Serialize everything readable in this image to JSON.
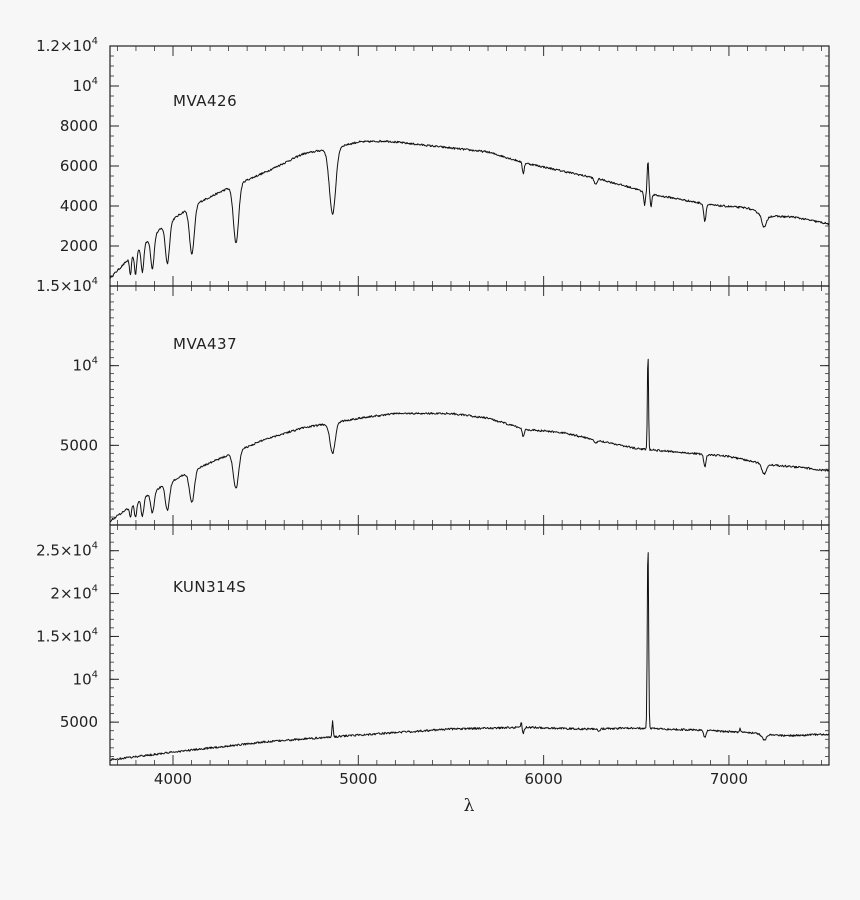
{
  "chart_data": {
    "type": "line",
    "xlabel": "λ",
    "xlim": [
      3660,
      7540
    ],
    "xticks": [
      "4000",
      "5000",
      "6000",
      "7000"
    ],
    "xtick_values": [
      4000,
      5000,
      6000,
      7000
    ],
    "grid": false,
    "panels": [
      {
        "label": "MVA426",
        "ylim": [
          0,
          12000
        ],
        "ytick_values": [
          2000,
          4000,
          6000,
          8000,
          10000,
          12000
        ],
        "ytick_labels": [
          {
            "base": "2000",
            "exp": ""
          },
          {
            "base": "4000",
            "exp": ""
          },
          {
            "base": "6000",
            "exp": ""
          },
          {
            "base": "8000",
            "exp": ""
          },
          {
            "base": "10",
            "exp": "4"
          },
          {
            "base": "1.2×10",
            "exp": "4"
          }
        ],
        "continuum": [
          [
            3660,
            400
          ],
          [
            3800,
            1700
          ],
          [
            3950,
            3000
          ],
          [
            4100,
            4000
          ],
          [
            4300,
            4900
          ],
          [
            4500,
            5700
          ],
          [
            4700,
            6600
          ],
          [
            4860,
            6900
          ],
          [
            5000,
            7200
          ],
          [
            5150,
            7250
          ],
          [
            5400,
            7000
          ],
          [
            5700,
            6700
          ],
          [
            5900,
            6150
          ],
          [
            6100,
            5750
          ],
          [
            6300,
            5350
          ],
          [
            6500,
            4850
          ],
          [
            6560,
            4600
          ],
          [
            6700,
            4400
          ],
          [
            6900,
            4050
          ],
          [
            7100,
            3900
          ],
          [
            7200,
            3500
          ],
          [
            7350,
            3450
          ],
          [
            7540,
            3100
          ]
        ],
        "features": [
          {
            "wl": 3770,
            "depth": -900,
            "width": 5
          },
          {
            "wl": 3798,
            "depth": -1100,
            "width": 6
          },
          {
            "wl": 3835,
            "depth": -1300,
            "width": 7
          },
          {
            "wl": 3889,
            "depth": -1600,
            "width": 9
          },
          {
            "wl": 3970,
            "depth": -2000,
            "width": 11
          },
          {
            "wl": 4102,
            "depth": -2400,
            "width": 13
          },
          {
            "wl": 4340,
            "depth": -2900,
            "width": 14
          },
          {
            "wl": 4861,
            "depth": -3300,
            "width": 17
          },
          {
            "wl": 5890,
            "depth": -550,
            "width": 5
          },
          {
            "wl": 6280,
            "depth": -300,
            "width": 8
          },
          {
            "wl": 6545,
            "depth": -600,
            "width": 4
          },
          {
            "wl": 6563,
            "depth": 1700,
            "width": 4
          },
          {
            "wl": 6580,
            "depth": -600,
            "width": 4
          },
          {
            "wl": 6870,
            "depth": -850,
            "width": 6
          },
          {
            "wl": 7190,
            "depth": -600,
            "width": 12
          }
        ]
      },
      {
        "label": "MVA437",
        "ylim": [
          0,
          15000
        ],
        "ytick_values": [
          5000,
          10000,
          15000
        ],
        "ytick_labels": [
          {
            "base": "5000",
            "exp": ""
          },
          {
            "base": "10",
            "exp": "4"
          },
          {
            "base": "1.5×10",
            "exp": "4"
          }
        ],
        "continuum": [
          [
            3660,
            250
          ],
          [
            3800,
            1400
          ],
          [
            3950,
            2500
          ],
          [
            4100,
            3400
          ],
          [
            4300,
            4400
          ],
          [
            4500,
            5400
          ],
          [
            4700,
            6100
          ],
          [
            4860,
            6400
          ],
          [
            5000,
            6700
          ],
          [
            5200,
            7000
          ],
          [
            5500,
            7000
          ],
          [
            5700,
            6700
          ],
          [
            5900,
            6000
          ],
          [
            6100,
            5800
          ],
          [
            6300,
            5300
          ],
          [
            6500,
            4800
          ],
          [
            6600,
            4700
          ],
          [
            6800,
            4500
          ],
          [
            7000,
            4300
          ],
          [
            7200,
            3800
          ],
          [
            7400,
            3600
          ],
          [
            7540,
            3400
          ]
        ],
        "features": [
          {
            "wl": 3770,
            "depth": -700,
            "width": 5
          },
          {
            "wl": 3798,
            "depth": -900,
            "width": 6
          },
          {
            "wl": 3835,
            "depth": -1100,
            "width": 7
          },
          {
            "wl": 3889,
            "depth": -1300,
            "width": 9
          },
          {
            "wl": 3970,
            "depth": -1700,
            "width": 11
          },
          {
            "wl": 4102,
            "depth": -2000,
            "width": 13
          },
          {
            "wl": 4340,
            "depth": -2300,
            "width": 14
          },
          {
            "wl": 4861,
            "depth": -1900,
            "width": 14
          },
          {
            "wl": 5890,
            "depth": -500,
            "width": 5
          },
          {
            "wl": 6280,
            "depth": -250,
            "width": 8
          },
          {
            "wl": 6563,
            "depth": 6200,
            "width": 3
          },
          {
            "wl": 6870,
            "depth": -800,
            "width": 6
          },
          {
            "wl": 7190,
            "depth": -600,
            "width": 12
          }
        ]
      },
      {
        "label": "KUN314S",
        "ylim": [
          0,
          28000
        ],
        "ytick_values": [
          5000,
          10000,
          15000,
          20000,
          25000
        ],
        "ytick_labels": [
          {
            "base": "5000",
            "exp": ""
          },
          {
            "base": "10",
            "exp": "4"
          },
          {
            "base": "1.5×10",
            "exp": "4"
          },
          {
            "base": "2×10",
            "exp": "4"
          },
          {
            "base": "2.5×10",
            "exp": "4"
          }
        ],
        "continuum": [
          [
            3660,
            600
          ],
          [
            4000,
            1500
          ],
          [
            4500,
            2700
          ],
          [
            5000,
            3500
          ],
          [
            5500,
            4200
          ],
          [
            5900,
            4400
          ],
          [
            6200,
            4200
          ],
          [
            6500,
            4300
          ],
          [
            6800,
            4100
          ],
          [
            7100,
            3800
          ],
          [
            7300,
            3400
          ],
          [
            7540,
            3600
          ]
        ],
        "features": [
          {
            "wl": 4861,
            "depth": 1900,
            "width": 3
          },
          {
            "wl": 5890,
            "depth": -700,
            "width": 5
          },
          {
            "wl": 5880,
            "depth": 700,
            "width": 3
          },
          {
            "wl": 6300,
            "depth": -300,
            "width": 5
          },
          {
            "wl": 6563,
            "depth": 22000,
            "width": 3.5
          },
          {
            "wl": 6870,
            "depth": -800,
            "width": 6
          },
          {
            "wl": 7060,
            "depth": 500,
            "width": 3
          },
          {
            "wl": 7190,
            "depth": -700,
            "width": 12
          }
        ]
      }
    ]
  }
}
